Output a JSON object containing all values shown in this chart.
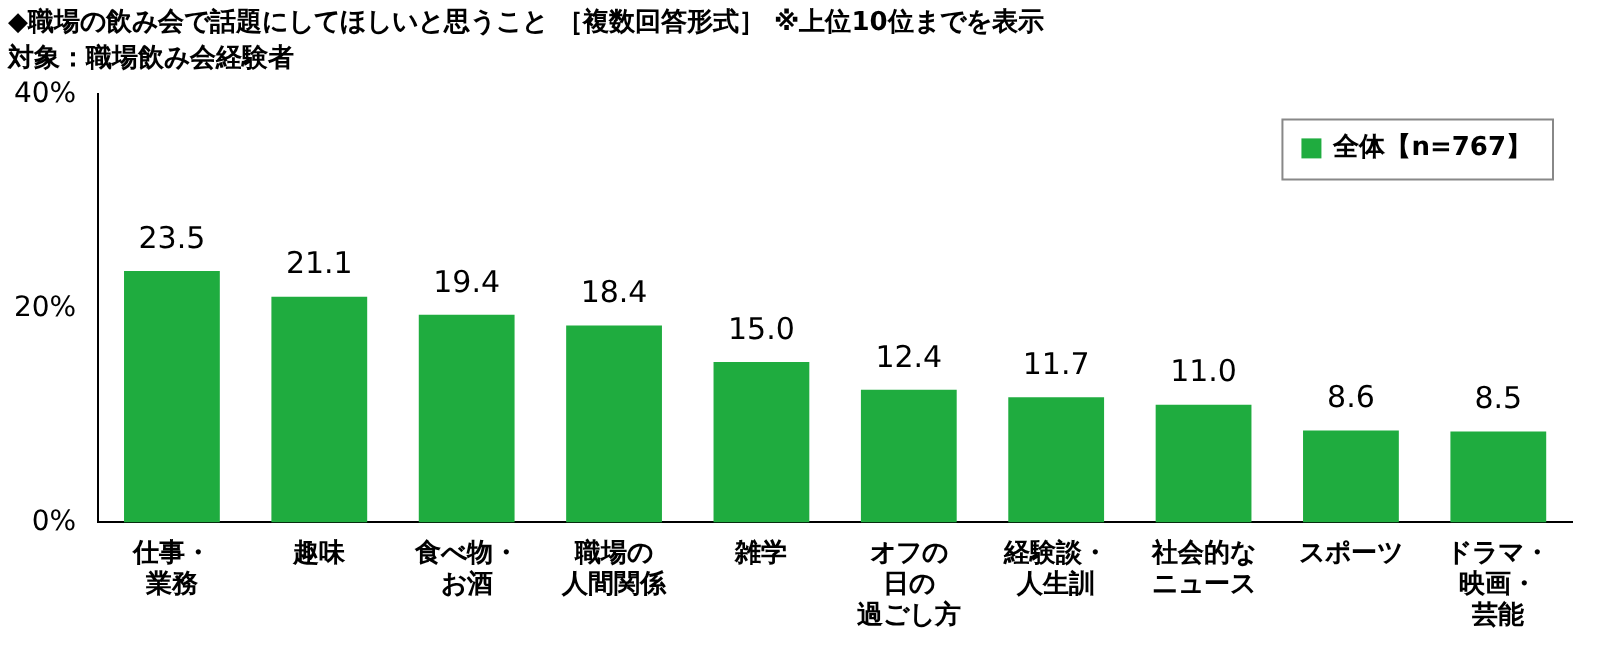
{
  "chart_data": {
    "type": "bar",
    "title": "◆職場の飲み会で話題にしてほしいと思うこと ［複数回答形式］ ※上位10位までを表示",
    "subtitle": "対象：職場飲み会経験者",
    "categories": [
      "仕事・業務",
      "趣味",
      "食べ物・お酒",
      "職場の人間関係",
      "雑学",
      "オフの日の過ごし方",
      "経験談・人生訓",
      "社会的なニュース",
      "スポーツ",
      "ドラマ・映画・芸能"
    ],
    "series": [
      {
        "name": "全体【n=767】",
        "color": "#1fac3f",
        "values": [
          23.5,
          21.1,
          19.4,
          18.4,
          15.0,
          12.4,
          11.7,
          11.0,
          8.6,
          8.5
        ],
        "value_labels": [
          "23.5",
          "21.1",
          "19.4",
          "18.4",
          "15.0",
          "12.4",
          "11.7",
          "11.0",
          "8.6",
          "8.5"
        ]
      }
    ],
    "ylim": [
      0,
      40
    ],
    "yticks": [
      {
        "value": 0,
        "label": "0%"
      },
      {
        "value": 20,
        "label": "20%"
      },
      {
        "value": 40,
        "label": "40%"
      }
    ],
    "grid": false,
    "legend": "top right"
  }
}
